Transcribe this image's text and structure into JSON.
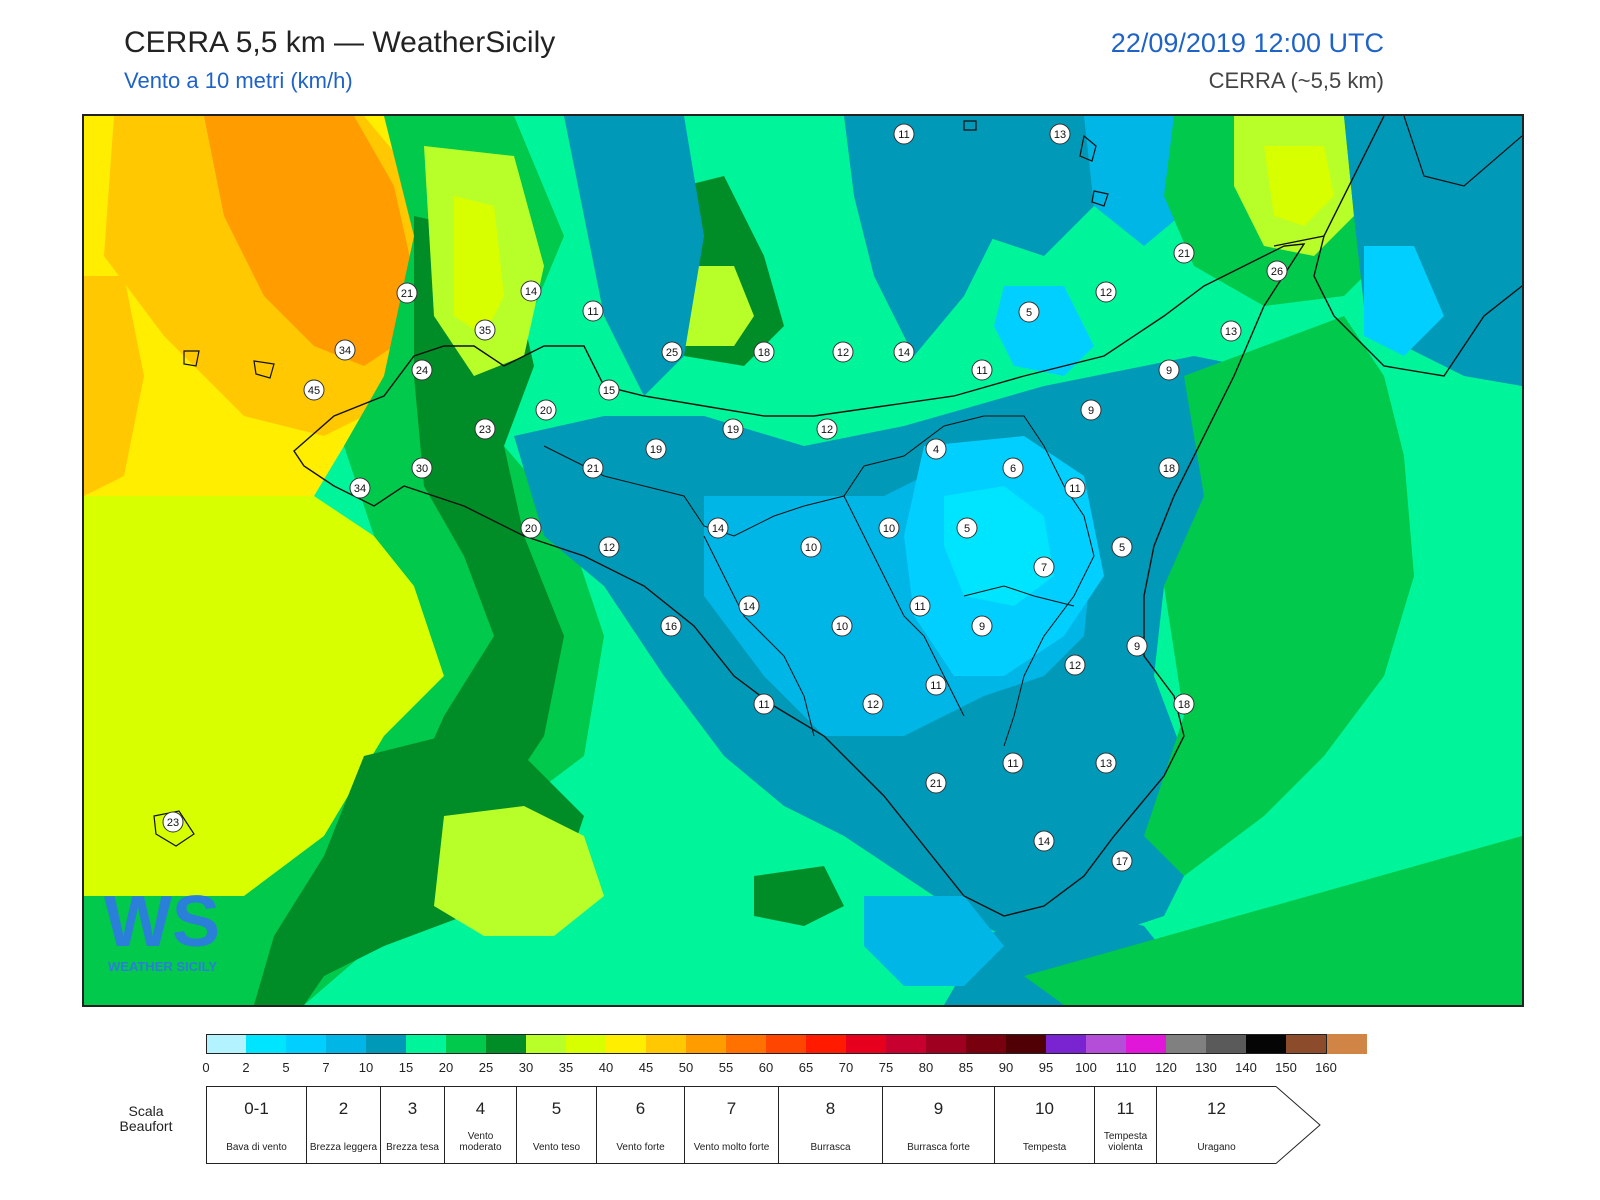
{
  "header": {
    "title": "CERRA 5,5 km — WeatherSicily",
    "subtitle": "Vento a 10 metri (km/h)",
    "datetime": "22/09/2019 12:00 UTC",
    "model": "CERRA (~5,5 km)"
  },
  "map": {
    "region": "Sicily",
    "variable": "10 m wind speed",
    "unit": "km/h",
    "stations": [
      {
        "label": "11",
        "lon_idx": 0
      },
      {
        "label": "13"
      },
      {
        "label": "21"
      },
      {
        "label": "14"
      },
      {
        "label": "11"
      },
      {
        "label": "21"
      },
      {
        "label": "26"
      },
      {
        "label": "12"
      },
      {
        "label": "35"
      },
      {
        "label": "34"
      },
      {
        "label": "5"
      },
      {
        "label": "25"
      },
      {
        "label": "18"
      },
      {
        "label": "12"
      },
      {
        "label": "14"
      },
      {
        "label": "13"
      },
      {
        "label": "45"
      },
      {
        "label": "24"
      },
      {
        "label": "15"
      },
      {
        "label": "11"
      },
      {
        "label": "9"
      },
      {
        "label": "20"
      },
      {
        "label": "9"
      },
      {
        "label": "23"
      },
      {
        "label": "19"
      },
      {
        "label": "19"
      },
      {
        "label": "12"
      },
      {
        "label": "4"
      },
      {
        "label": "30"
      },
      {
        "label": "21"
      },
      {
        "label": "6"
      },
      {
        "label": "18"
      },
      {
        "label": "34"
      },
      {
        "label": "11"
      },
      {
        "label": "20"
      },
      {
        "label": "14"
      },
      {
        "label": "10"
      },
      {
        "label": "5"
      },
      {
        "label": "12"
      },
      {
        "label": "10"
      },
      {
        "label": "5"
      },
      {
        "label": "7"
      },
      {
        "label": "14"
      },
      {
        "label": "11"
      },
      {
        "label": "16"
      },
      {
        "label": "10"
      },
      {
        "label": "9"
      },
      {
        "label": "9"
      },
      {
        "label": "12"
      },
      {
        "label": "11"
      },
      {
        "label": "12"
      },
      {
        "label": "11"
      },
      {
        "label": "18"
      },
      {
        "label": "21"
      },
      {
        "label": "11"
      },
      {
        "label": "13"
      },
      {
        "label": "23"
      },
      {
        "label": "14"
      },
      {
        "label": "17"
      }
    ],
    "logo_text": "WEATHER SICILY"
  },
  "legend": {
    "scale_ticks": [
      "0",
      "2",
      "5",
      "7",
      "10",
      "15",
      "20",
      "25",
      "30",
      "35",
      "40",
      "45",
      "50",
      "55",
      "60",
      "65",
      "70",
      "75",
      "80",
      "85",
      "90",
      "95",
      "100",
      "110",
      "120",
      "130",
      "140",
      "150",
      "160"
    ],
    "colors": [
      "#b3f3ff",
      "#00e5ff",
      "#00cfff",
      "#00b6e6",
      "#0099b8",
      "#00f59a",
      "#00c94b",
      "#008c26",
      "#b8ff2a",
      "#d8ff00",
      "#ffee00",
      "#ffc800",
      "#ff9c00",
      "#ff7200",
      "#ff4600",
      "#ff1a00",
      "#e6001e",
      "#c80030",
      "#a00020",
      "#78000f",
      "#500005",
      "#7a24d1",
      "#b44ed8",
      "#e017d8",
      "#808080",
      "#5a5a5a",
      "#050505",
      "#8c4c2c",
      "#d08446"
    ],
    "beaufort_label": "Scala Beaufort",
    "beaufort": [
      {
        "num": "0-1",
        "desc": "Bava di vento"
      },
      {
        "num": "2",
        "desc": "Brezza leggera"
      },
      {
        "num": "3",
        "desc": "Brezza tesa"
      },
      {
        "num": "4",
        "desc": "Vento moderato"
      },
      {
        "num": "5",
        "desc": "Vento teso"
      },
      {
        "num": "6",
        "desc": "Vento forte"
      },
      {
        "num": "7",
        "desc": "Vento molto forte"
      },
      {
        "num": "8",
        "desc": "Burrasca"
      },
      {
        "num": "9",
        "desc": "Burrasca forte"
      },
      {
        "num": "10",
        "desc": "Tempesta"
      },
      {
        "num": "11",
        "desc": "Tempesta violenta"
      },
      {
        "num": "12",
        "desc": "Uragano"
      }
    ]
  }
}
